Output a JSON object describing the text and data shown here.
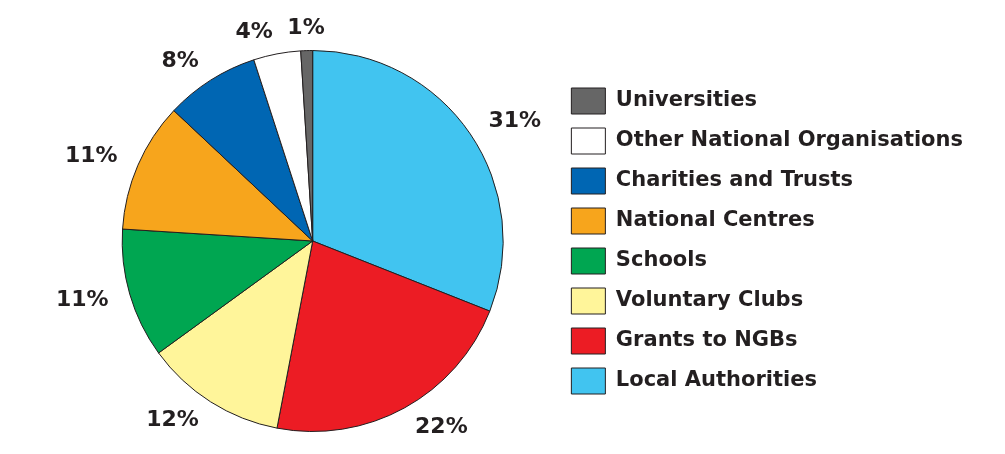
{
  "chart_data": {
    "type": "pie",
    "categories": [
      "Local Authorities",
      "Grants to NGBs",
      "Voluntary Clubs",
      "Schools",
      "National Centres",
      "Charities and Trusts",
      "Other National Organisations",
      "Universities"
    ],
    "values": [
      31,
      22,
      12,
      11,
      11,
      8,
      4,
      1
    ],
    "colors": [
      "#41c4f0",
      "#ec1c24",
      "#fff59a",
      "#00a651",
      "#f7a51c",
      "#0066b3",
      "#ffffff",
      "#666666"
    ],
    "value_labels": [
      "31%",
      "22%",
      "12%",
      "11%",
      "11%",
      "8%",
      "4%",
      "1%"
    ],
    "legend": "right"
  }
}
